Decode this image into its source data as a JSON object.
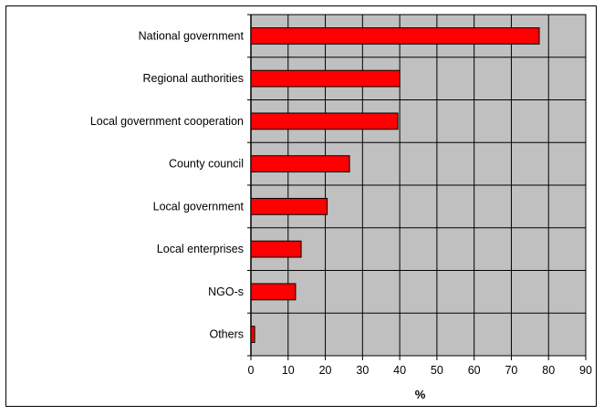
{
  "chart_data": {
    "type": "bar",
    "orientation": "horizontal",
    "categories": [
      "National government",
      "Regional authorities",
      "Local government cooperation",
      "County council",
      "Local government",
      "Local enterprises",
      "NGO-s",
      "Others"
    ],
    "values": [
      77.5,
      40,
      39.5,
      26.5,
      20.5,
      13.5,
      12,
      1
    ],
    "xlabel": "%",
    "ylabel": "",
    "xlim": [
      0,
      90
    ],
    "x_ticks": [
      "0",
      "10",
      "20",
      "30",
      "40",
      "50",
      "60",
      "70",
      "80",
      "90"
    ],
    "grid": true,
    "legend": "none",
    "colors": {
      "bar_fill": "#ff0000",
      "bar_stroke": "#000000",
      "plot_background": "#c0c0c0",
      "grid": "#000000"
    }
  }
}
